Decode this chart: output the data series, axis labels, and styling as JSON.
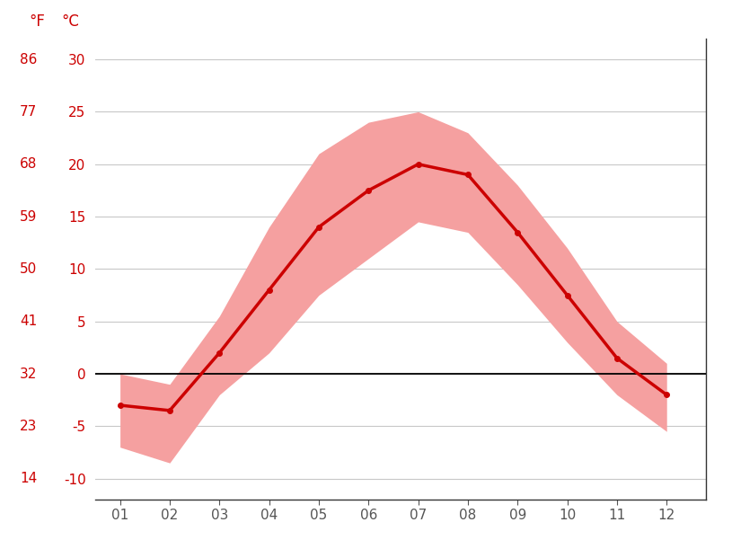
{
  "months": [
    1,
    2,
    3,
    4,
    5,
    6,
    7,
    8,
    9,
    10,
    11,
    12
  ],
  "month_labels": [
    "01",
    "02",
    "03",
    "04",
    "05",
    "06",
    "07",
    "08",
    "09",
    "10",
    "11",
    "12"
  ],
  "mean_temp": [
    -3.0,
    -3.5,
    2.0,
    8.0,
    14.0,
    17.5,
    20.0,
    19.0,
    13.5,
    7.5,
    1.5,
    -2.0
  ],
  "max_temp": [
    0.0,
    -1.0,
    5.5,
    14.0,
    21.0,
    24.0,
    25.0,
    23.0,
    18.0,
    12.0,
    5.0,
    1.0
  ],
  "min_temp": [
    -7.0,
    -8.5,
    -2.0,
    2.0,
    7.5,
    11.0,
    14.5,
    13.5,
    8.5,
    3.0,
    -2.0,
    -5.5
  ],
  "y_ticks_c": [
    -10,
    -5,
    0,
    5,
    10,
    15,
    20,
    25,
    30
  ],
  "y_ticks_f": [
    14,
    23,
    32,
    41,
    50,
    59,
    68,
    77,
    86
  ],
  "ylim_c": [
    -12,
    32
  ],
  "line_color": "#cc0000",
  "band_color": "#f5a0a0",
  "zero_line_color": "#000000",
  "grid_color": "#c8c8c8",
  "label_color": "#cc0000",
  "tick_color": "#555555",
  "background_color": "#ffffff",
  "spine_color": "#333333"
}
